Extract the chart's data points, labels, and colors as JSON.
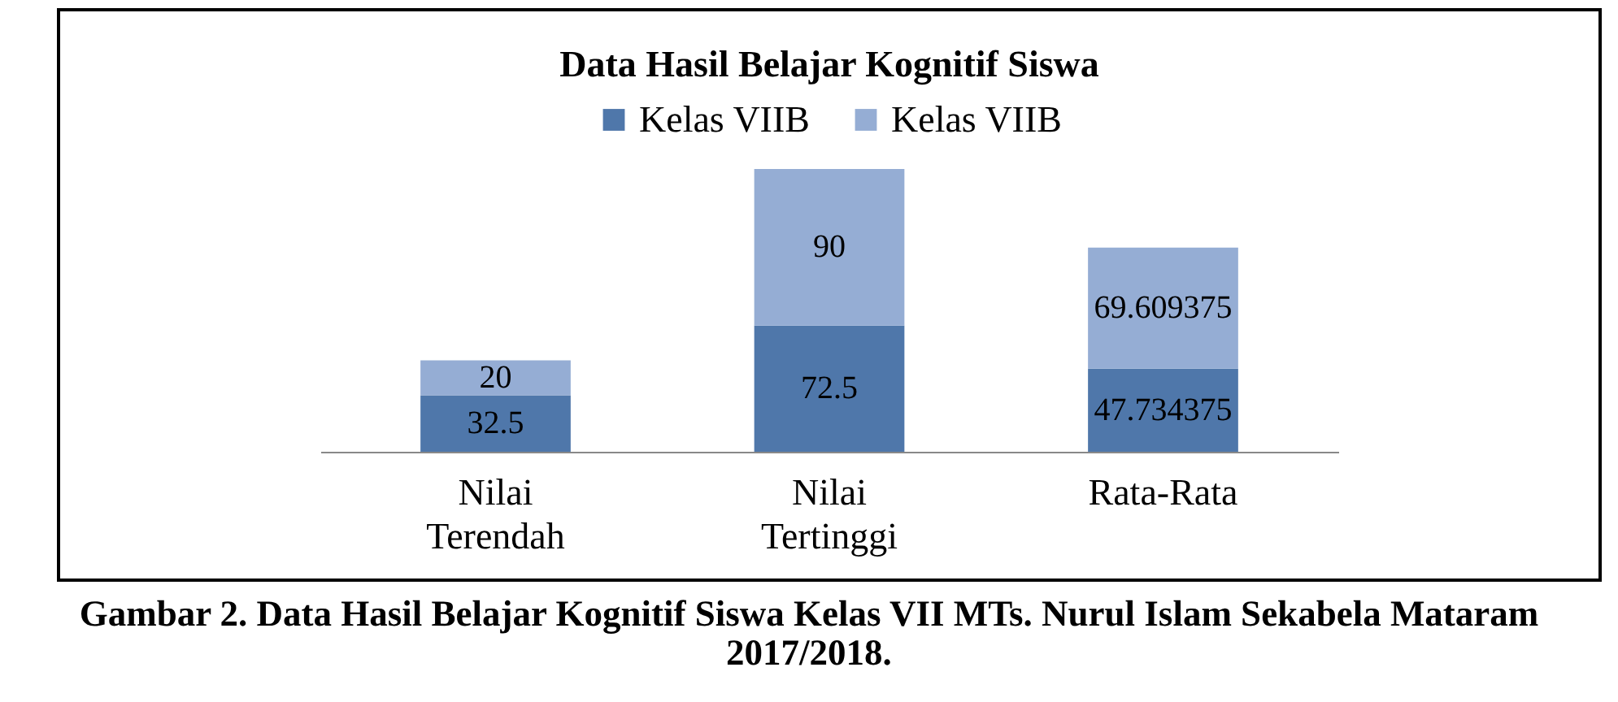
{
  "chart_data": {
    "type": "bar",
    "title": "Data Hasil Belajar Kognitif Siswa",
    "categories": [
      "Nilai Terendah",
      "Nilai Tertinggi",
      "Rata-Rata"
    ],
    "series": [
      {
        "name": "Kelas VIIB",
        "color": "#4f77aa",
        "values": [
          32.5,
          72.5,
          47.734375
        ]
      },
      {
        "name": "Kelas VIIB",
        "color": "#95add4",
        "values": [
          20,
          90,
          69.609375
        ]
      }
    ],
    "stacked": true,
    "data_labels": true,
    "legend": "top",
    "grid": false,
    "annotations": [
      "Gambar 2. Data Hasil Belajar Kognitif Siswa Kelas VII MTs. Nurul Islam Sekabela Mataram 2017/2018."
    ]
  }
}
